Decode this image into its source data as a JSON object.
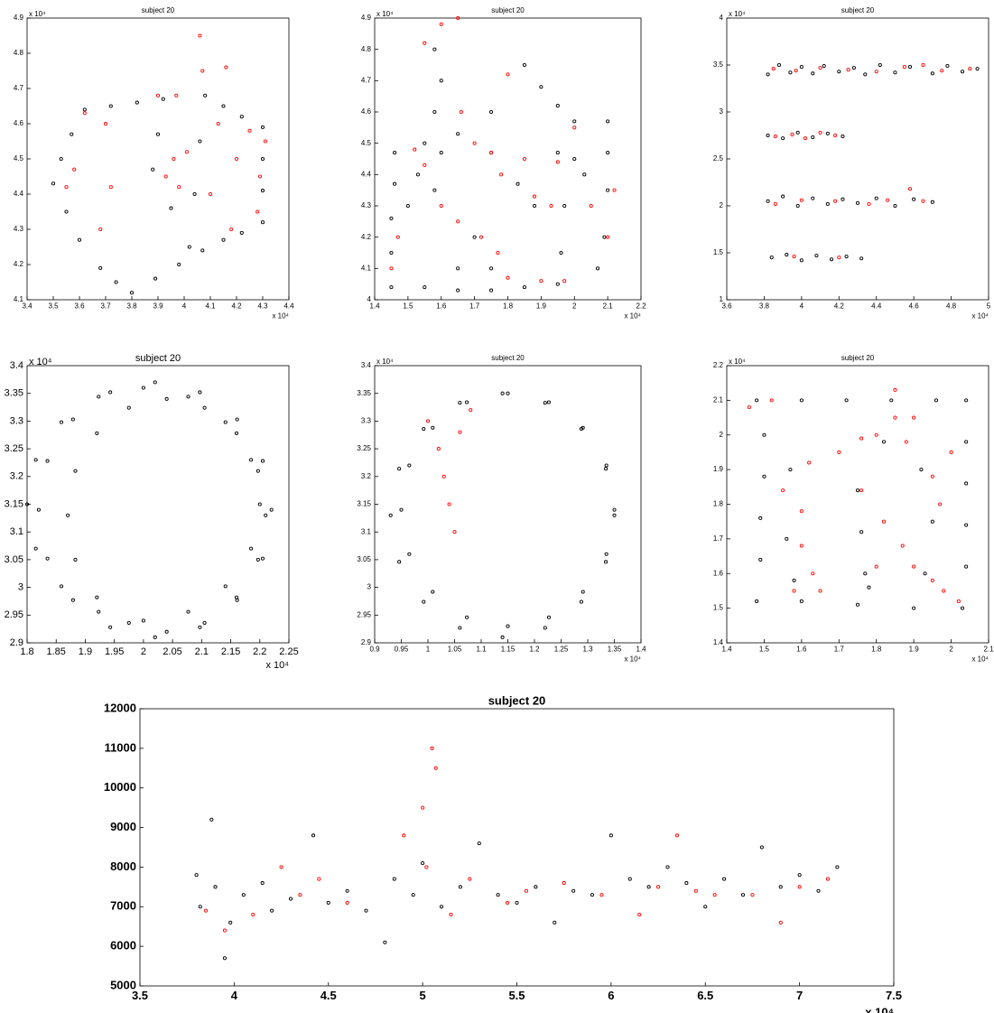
{
  "chart_data": [
    {
      "type": "scatter",
      "title": "subject 20",
      "x_exponent_label": "x 10⁴",
      "y_exponent_label": "x 10⁴",
      "xlim": [
        3.4,
        4.4
      ],
      "ylim": [
        4.1,
        4.9
      ],
      "xticks": [
        3.4,
        3.5,
        3.6,
        3.7,
        3.8,
        3.9,
        4,
        4.1,
        4.2,
        4.3,
        4.4
      ],
      "yticks": [
        4.1,
        4.2,
        4.3,
        4.4,
        4.5,
        4.6,
        4.7,
        4.8,
        4.9
      ],
      "series": [
        {
          "color": "#000000",
          "x": [
            3.5,
            3.53,
            3.57,
            3.62,
            3.72,
            3.82,
            3.92,
            3.9,
            3.88,
            3.95,
            4.02,
            4.04,
            4.06,
            4.08,
            4.15,
            4.22,
            4.3,
            4.3,
            4.3,
            4.3,
            4.22,
            4.15,
            4.07,
            3.98,
            3.89,
            3.8,
            3.74,
            3.68,
            3.6,
            3.55
          ],
          "values": [
            4.43,
            4.5,
            4.57,
            4.64,
            4.65,
            4.66,
            4.67,
            4.57,
            4.47,
            4.36,
            4.25,
            4.4,
            4.55,
            4.68,
            4.65,
            4.62,
            4.59,
            4.5,
            4.41,
            4.32,
            4.29,
            4.27,
            4.24,
            4.2,
            4.16,
            4.12,
            4.15,
            4.19,
            4.27,
            4.35
          ]
        },
        {
          "color": "#ff0000",
          "x": [
            3.62,
            3.7,
            3.9,
            3.97,
            4.01,
            4.06,
            4.07,
            4.1,
            4.13,
            4.16,
            4.18,
            4.2,
            4.25,
            4.28,
            4.31,
            4.29,
            3.93,
            3.98,
            3.96,
            3.72,
            3.68,
            3.55,
            3.58
          ],
          "values": [
            4.63,
            4.6,
            4.68,
            4.68,
            4.52,
            4.85,
            4.75,
            4.4,
            4.6,
            4.76,
            4.3,
            4.5,
            4.58,
            4.35,
            4.55,
            4.45,
            4.45,
            4.42,
            4.5,
            4.42,
            4.3,
            4.42,
            4.47
          ]
        }
      ]
    },
    {
      "type": "scatter",
      "title": "subject 20",
      "x_exponent_label": "x 10⁴",
      "y_exponent_label": "x 10⁴",
      "xlim": [
        1.4,
        2.2
      ],
      "ylim": [
        4,
        4.9
      ],
      "xticks": [
        1.4,
        1.5,
        1.6,
        1.7,
        1.8,
        1.9,
        2,
        2.1,
        2.2
      ],
      "yticks": [
        4,
        4.1,
        4.2,
        4.3,
        4.4,
        4.5,
        4.6,
        4.7,
        4.8,
        4.9
      ],
      "series": [
        {
          "color": "#000000",
          "x": [
            1.45,
            1.45,
            1.45,
            1.46,
            1.46,
            1.55,
            1.65,
            1.75,
            1.85,
            1.9,
            1.95,
            2.0,
            2.1,
            2.1,
            2.1,
            2.09,
            2.07,
            1.95,
            1.85,
            1.75,
            1.65,
            1.55,
            1.6,
            1.75,
            1.95,
            1.97,
            1.96,
            2.0,
            2.03,
            1.53,
            1.58,
            1.5,
            1.83,
            1.88,
            1.7,
            1.75,
            1.65,
            1.58,
            1.6,
            1.58
          ],
          "values": [
            4.04,
            4.15,
            4.26,
            4.37,
            4.47,
            4.5,
            4.53,
            4.6,
            4.75,
            4.68,
            4.62,
            4.57,
            4.57,
            4.47,
            4.35,
            4.2,
            4.1,
            4.05,
            4.04,
            4.03,
            4.03,
            4.04,
            4.47,
            4.47,
            4.47,
            4.3,
            4.15,
            4.45,
            4.4,
            4.4,
            4.35,
            4.3,
            4.37,
            4.3,
            4.2,
            4.1,
            4.1,
            4.8,
            4.7,
            4.6
          ]
        },
        {
          "color": "#ff0000",
          "x": [
            1.52,
            1.55,
            1.6,
            1.65,
            1.66,
            1.7,
            1.78,
            1.85,
            1.95,
            2.05,
            2.1,
            2.12,
            2.0,
            1.6,
            1.65,
            1.72,
            1.77,
            1.8,
            1.9,
            1.97,
            1.45,
            1.47,
            1.88,
            1.93,
            1.8,
            1.55,
            1.75
          ],
          "values": [
            4.48,
            4.82,
            4.88,
            4.9,
            4.6,
            4.5,
            4.4,
            4.45,
            4.44,
            4.3,
            4.2,
            4.35,
            4.55,
            4.3,
            4.25,
            4.2,
            4.15,
            4.07,
            4.06,
            4.06,
            4.1,
            4.2,
            4.33,
            4.3,
            4.72,
            4.43,
            4.47
          ]
        }
      ]
    },
    {
      "type": "scatter",
      "title": "subject 20",
      "x_exponent_label": "x 10⁴",
      "y_exponent_label": "x 10⁴",
      "xlim": [
        3.6,
        5
      ],
      "ylim": [
        1,
        4
      ],
      "xticks": [
        3.6,
        3.8,
        4,
        4.2,
        4.4,
        4.6,
        4.8,
        5
      ],
      "yticks": [
        1,
        1.5,
        2,
        2.5,
        3,
        3.5,
        4
      ],
      "series": [
        {
          "color": "#000000",
          "x": [
            3.82,
            3.88,
            3.94,
            4.0,
            4.06,
            4.12,
            4.2,
            4.28,
            4.34,
            4.42,
            4.5,
            4.58,
            4.7,
            4.78,
            4.86,
            4.94,
            3.82,
            3.9,
            3.98,
            4.06,
            4.14,
            4.22,
            3.82,
            3.9,
            3.98,
            4.06,
            4.14,
            4.22,
            4.3,
            4.4,
            4.5,
            4.6,
            4.7,
            3.84,
            3.92,
            4.0,
            4.08,
            4.16,
            4.24,
            4.32
          ],
          "values": [
            3.4,
            3.5,
            3.42,
            3.48,
            3.41,
            3.49,
            3.43,
            3.47,
            3.4,
            3.5,
            3.42,
            3.48,
            3.41,
            3.49,
            3.43,
            3.46,
            2.75,
            2.72,
            2.78,
            2.73,
            2.77,
            2.74,
            2.05,
            2.1,
            2.0,
            2.08,
            2.02,
            2.07,
            2.03,
            2.08,
            2.0,
            2.07,
            2.04,
            1.45,
            1.48,
            1.42,
            1.47,
            1.43,
            1.46,
            1.44
          ]
        },
        {
          "color": "#ff0000",
          "x": [
            3.85,
            3.97,
            4.1,
            4.25,
            4.4,
            4.55,
            4.65,
            4.75,
            4.9,
            3.86,
            3.95,
            4.02,
            4.1,
            4.18,
            3.86,
            4.0,
            4.18,
            4.36,
            4.46,
            4.58,
            4.65,
            3.96,
            4.2
          ],
          "values": [
            3.46,
            3.44,
            3.47,
            3.45,
            3.43,
            3.48,
            3.5,
            3.44,
            3.46,
            2.74,
            2.76,
            2.72,
            2.78,
            2.75,
            2.02,
            2.06,
            2.05,
            2.02,
            2.06,
            2.18,
            2.05,
            1.46,
            1.45
          ]
        }
      ]
    },
    {
      "type": "scatter",
      "title": "subject 20",
      "x_exponent_label": "x 10⁴",
      "y_exponent_label": "x 10⁴",
      "xlim": [
        1.8,
        2.25
      ],
      "ylim": [
        2.9,
        3.4
      ],
      "xticks": [
        1.8,
        1.85,
        1.9,
        1.95,
        2,
        2.05,
        2.1,
        2.15,
        2.2,
        2.25
      ],
      "yticks": [
        2.9,
        2.95,
        3,
        3.05,
        3.1,
        3.15,
        3.2,
        3.25,
        3.3,
        3.35,
        3.4
      ],
      "series": [
        {
          "color": "#000000",
          "x": [
            2.22,
            2.205,
            2.161,
            2.097,
            2.02,
            1.943,
            1.879,
            1.835,
            1.82,
            1.835,
            1.879,
            1.943,
            2.02,
            2.097,
            2.161,
            2.205,
            2.21,
            2.197,
            2.16,
            2.105,
            2.04,
            1.975,
            1.92,
            1.883,
            1.87,
            1.883,
            1.92,
            1.975,
            2.04,
            2.105,
            2.16,
            2.197,
            2.2,
            2.185,
            2.141,
            2.077,
            2.0,
            1.923,
            1.859,
            1.815,
            1.8,
            1.815,
            1.859,
            1.923,
            2.0,
            2.077,
            2.141,
            2.185
          ],
          "values": [
            3.14,
            3.228,
            3.303,
            3.352,
            3.37,
            3.352,
            3.303,
            3.228,
            3.14,
            3.052,
            2.977,
            2.928,
            2.91,
            2.928,
            2.977,
            3.052,
            3.13,
            3.21,
            3.278,
            3.324,
            3.34,
            3.324,
            3.278,
            3.21,
            3.13,
            3.05,
            2.982,
            2.936,
            2.92,
            2.936,
            2.982,
            3.05,
            3.15,
            3.23,
            3.298,
            3.344,
            3.36,
            3.344,
            3.298,
            3.23,
            3.15,
            3.07,
            3.002,
            2.956,
            2.94,
            2.956,
            3.002,
            3.07
          ]
        }
      ]
    },
    {
      "type": "scatter",
      "title": "subject 20",
      "x_exponent_label": "x 10⁴",
      "y_exponent_label": "x 10⁴",
      "xlim": [
        0.9,
        1.4
      ],
      "ylim": [
        2.9,
        3.4
      ],
      "xticks": [
        0.9,
        0.95,
        1,
        1.05,
        1.1,
        1.15,
        1.2,
        1.25,
        1.3,
        1.35,
        1.4
      ],
      "yticks": [
        2.9,
        2.95,
        3,
        3.05,
        3.1,
        3.15,
        3.2,
        3.25,
        3.3,
        3.35,
        3.4
      ],
      "series": [
        {
          "color": "#000000",
          "x": [
            1.35,
            1.334,
            1.288,
            1.22,
            1.14,
            1.06,
            0.992,
            0.946,
            0.93,
            0.946,
            0.992,
            1.06,
            1.14,
            1.22,
            1.288,
            1.334,
            1.35,
            1.335,
            1.291,
            1.227,
            1.15,
            1.073,
            1.009,
            0.965,
            0.95,
            0.965,
            1.009,
            1.073,
            1.15,
            1.227,
            1.291,
            1.335
          ],
          "values": [
            3.13,
            3.214,
            3.286,
            3.333,
            3.35,
            3.333,
            3.286,
            3.214,
            3.13,
            3.046,
            2.974,
            2.927,
            2.91,
            2.927,
            2.974,
            3.046,
            3.14,
            3.22,
            3.288,
            3.334,
            3.35,
            3.334,
            3.288,
            3.22,
            3.14,
            3.06,
            2.992,
            2.946,
            2.93,
            2.946,
            2.992,
            3.06
          ]
        },
        {
          "color": "#ff0000",
          "x": [
            1.0,
            1.02,
            1.03,
            1.04,
            1.05,
            1.06,
            1.08
          ],
          "values": [
            3.3,
            3.25,
            3.2,
            3.15,
            3.1,
            3.28,
            3.32
          ]
        }
      ]
    },
    {
      "type": "scatter",
      "title": "subject 20",
      "x_exponent_label": "x 10⁴",
      "y_exponent_label": "x 10⁴",
      "xlim": [
        1.4,
        2.1
      ],
      "ylim": [
        1.4,
        2.2
      ],
      "xticks": [
        1.4,
        1.5,
        1.6,
        1.7,
        1.8,
        1.9,
        2,
        2.1
      ],
      "yticks": [
        1.4,
        1.5,
        1.6,
        1.7,
        1.8,
        1.9,
        2,
        2.1,
        2.2
      ],
      "series": [
        {
          "color": "#000000",
          "x": [
            1.48,
            1.6,
            1.72,
            1.84,
            1.96,
            2.04,
            2.04,
            2.04,
            2.04,
            2.04,
            2.03,
            1.9,
            1.75,
            1.6,
            1.48,
            1.49,
            1.49,
            1.5,
            1.5,
            1.75,
            1.76,
            1.77,
            1.78,
            1.56,
            1.58,
            1.82,
            1.92,
            1.95,
            1.93,
            1.57
          ],
          "values": [
            2.1,
            2.1,
            2.1,
            2.1,
            2.1,
            2.1,
            1.98,
            1.86,
            1.74,
            1.62,
            1.5,
            1.5,
            1.51,
            1.52,
            1.52,
            1.64,
            1.76,
            1.88,
            2.0,
            1.84,
            1.72,
            1.6,
            1.56,
            1.7,
            1.58,
            1.98,
            1.9,
            1.75,
            1.6,
            1.9
          ]
        },
        {
          "color": "#ff0000",
          "x": [
            1.46,
            1.52,
            1.55,
            1.6,
            1.62,
            1.6,
            1.63,
            1.58,
            1.65,
            1.7,
            1.76,
            1.8,
            1.85,
            1.88,
            1.9,
            1.95,
            1.97,
            2.0,
            1.82,
            1.87,
            1.9,
            1.95,
            1.98,
            1.8,
            1.85,
            1.76,
            2.02
          ],
          "values": [
            2.08,
            2.1,
            1.84,
            1.78,
            1.92,
            1.68,
            1.6,
            1.55,
            1.55,
            1.95,
            1.99,
            2.0,
            2.05,
            1.98,
            2.05,
            1.88,
            1.8,
            1.95,
            1.75,
            1.68,
            1.62,
            1.58,
            1.55,
            1.62,
            2.13,
            1.84,
            1.52
          ]
        }
      ]
    },
    {
      "type": "scatter",
      "title": "subject 20",
      "x_exponent_label": "x 10⁴",
      "xlim": [
        3.5,
        7.5
      ],
      "ylim": [
        5000,
        12000
      ],
      "xticks": [
        3.5,
        4,
        4.5,
        5,
        5.5,
        6,
        6.5,
        7,
        7.5
      ],
      "yticks": [
        5000,
        6000,
        7000,
        8000,
        9000,
        10000,
        11000,
        12000
      ],
      "series": [
        {
          "color": "#000000",
          "x": [
            3.8,
            3.82,
            3.88,
            3.9,
            3.95,
            3.98,
            4.05,
            4.15,
            4.2,
            4.3,
            4.42,
            4.5,
            4.6,
            4.7,
            4.8,
            4.85,
            4.95,
            5.0,
            5.1,
            5.2,
            5.3,
            5.4,
            5.5,
            5.6,
            5.7,
            5.8,
            5.9,
            6.0,
            6.1,
            6.2,
            6.3,
            6.4,
            6.5,
            6.6,
            6.7,
            6.8,
            6.9,
            7.0,
            7.1,
            7.2
          ],
          "values": [
            7800,
            7000,
            9200,
            7500,
            5700,
            6600,
            7300,
            7600,
            6900,
            7200,
            8800,
            7100,
            7400,
            6900,
            6100,
            7700,
            7300,
            8100,
            7000,
            7500,
            8600,
            7300,
            7100,
            7500,
            6600,
            7400,
            7300,
            8800,
            7700,
            7500,
            8000,
            7600,
            7000,
            7700,
            7300,
            8500,
            7500,
            7800,
            7400,
            8000
          ]
        },
        {
          "color": "#ff0000",
          "x": [
            3.85,
            3.95,
            4.1,
            4.25,
            4.35,
            4.45,
            4.6,
            4.9,
            5.0,
            5.05,
            5.07,
            5.02,
            5.15,
            5.25,
            5.45,
            5.55,
            5.75,
            5.95,
            6.15,
            6.25,
            6.35,
            6.45,
            6.55,
            6.75,
            6.9,
            7.0,
            7.15
          ],
          "values": [
            6900,
            6400,
            6800,
            8000,
            7300,
            7700,
            7100,
            8800,
            9500,
            11000,
            10500,
            8000,
            6800,
            7700,
            7100,
            7400,
            7600,
            7300,
            6800,
            7500,
            8800,
            7400,
            7300,
            7300,
            6600,
            7500,
            7700
          ]
        }
      ]
    }
  ]
}
